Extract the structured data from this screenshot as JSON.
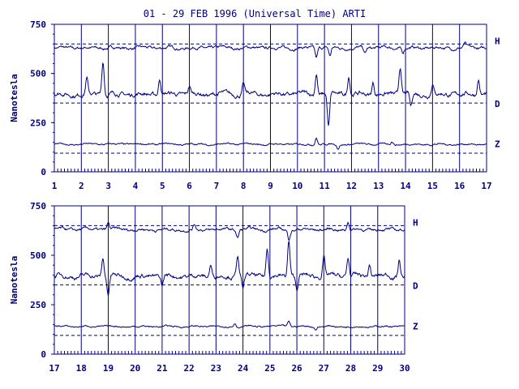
{
  "chart_data": {
    "type": "line",
    "title": "01 - 29 FEB 1996 (Universal Time) ARTI",
    "ylabel": "Nanotesla",
    "colors": {
      "line": "#000080",
      "axis": "#000080",
      "background": "#ffffff"
    },
    "panels": [
      {
        "xlim": [
          1,
          17
        ],
        "ylim": [
          0,
          750
        ],
        "ticks_x": [
          "1",
          "2",
          "3",
          "4",
          "5",
          "6",
          "7",
          "8",
          "9",
          "10",
          "11",
          "12",
          "13",
          "14",
          "15",
          "16",
          "17"
        ],
        "ticks_y": [
          "0",
          "250",
          "500",
          "750"
        ],
        "baselines": [
          650,
          350,
          95
        ],
        "series": [
          {
            "name": "H",
            "base": 630,
            "amp": 10,
            "spikes": [
              [
                10.7,
                -50
              ],
              [
                11.2,
                -45
              ],
              [
                12.5,
                -30
              ],
              [
                13.9,
                -25
              ],
              [
                16.2,
                20
              ]
            ]
          },
          {
            "name": "D",
            "base": 395,
            "amp": 15,
            "spikes": [
              [
                2.2,
                80
              ],
              [
                2.8,
                170
              ],
              [
                4.9,
                80
              ],
              [
                6.0,
                40
              ],
              [
                8.0,
                50
              ],
              [
                10.7,
                110
              ],
              [
                11.15,
                -170
              ],
              [
                11.9,
                95
              ],
              [
                12.8,
                60
              ],
              [
                13.8,
                140
              ],
              [
                14.2,
                -70
              ],
              [
                15.0,
                60
              ],
              [
                16.7,
                80
              ]
            ]
          },
          {
            "name": "Z",
            "base": 140,
            "amp": 6,
            "spikes": [
              [
                10.7,
                35
              ],
              [
                11.5,
                -20
              ],
              [
                13.5,
                15
              ]
            ]
          }
        ]
      },
      {
        "xlim": [
          17,
          30
        ],
        "ylim": [
          0,
          750
        ],
        "ticks_x": [
          "17",
          "18",
          "19",
          "20",
          "21",
          "22",
          "23",
          "24",
          "25",
          "26",
          "27",
          "28",
          "29",
          "30"
        ],
        "ticks_y": [
          "0",
          "250",
          "500",
          "750"
        ],
        "baselines": [
          650,
          350,
          95
        ],
        "series": [
          {
            "name": "H",
            "base": 630,
            "amp": 10,
            "spikes": [
              [
                19.0,
                30
              ],
              [
                22.2,
                25
              ],
              [
                23.8,
                -40
              ],
              [
                25.7,
                -45
              ],
              [
                27.9,
                40
              ]
            ]
          },
          {
            "name": "D",
            "base": 395,
            "amp": 15,
            "spikes": [
              [
                18.8,
                90
              ],
              [
                19.0,
                -100
              ],
              [
                21.0,
                -50
              ],
              [
                22.8,
                60
              ],
              [
                23.8,
                110
              ],
              [
                24.0,
                -70
              ],
              [
                24.9,
                140
              ],
              [
                25.7,
                180
              ],
              [
                26.0,
                -70
              ],
              [
                27.0,
                95
              ],
              [
                27.9,
                90
              ],
              [
                28.7,
                60
              ],
              [
                29.8,
                85
              ]
            ]
          },
          {
            "name": "Z",
            "base": 140,
            "amp": 6,
            "spikes": [
              [
                23.7,
                20
              ],
              [
                25.7,
                25
              ],
              [
                26.7,
                -12
              ]
            ]
          }
        ]
      }
    ]
  }
}
